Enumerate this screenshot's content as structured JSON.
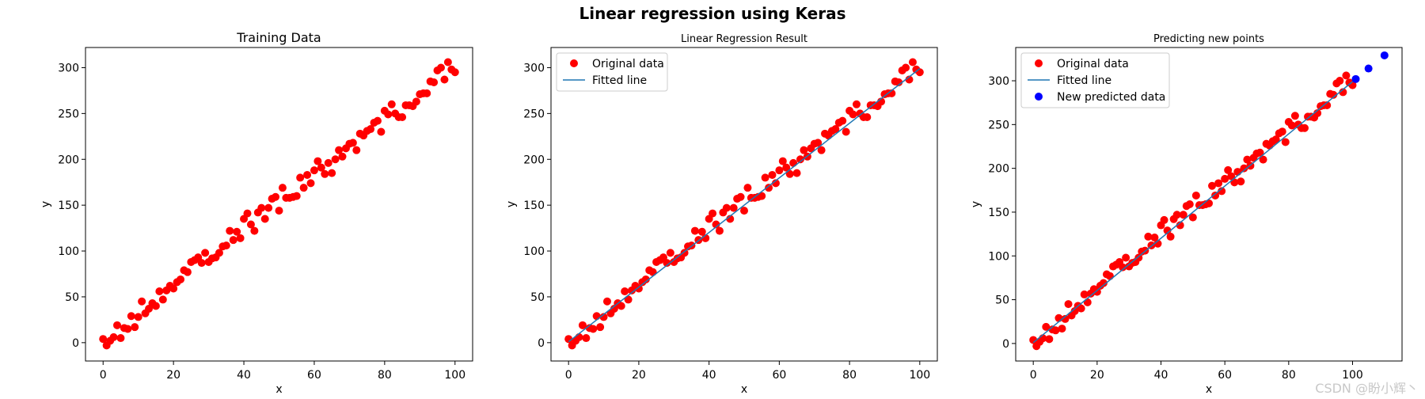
{
  "figure": {
    "suptitle": "Linear regression using Keras",
    "watermark": "CSDN @盼小辉丶"
  },
  "colors": {
    "original": "#ff0000",
    "fitted": "#1f77b4",
    "predicted": "#0000ff",
    "axes": "#000000"
  },
  "chart_data": [
    {
      "type": "scatter",
      "title": "Training Data",
      "xlabel": "x",
      "ylabel": "y",
      "xlim": [
        -5,
        105
      ],
      "ylim": [
        -20,
        322
      ],
      "xticks": [
        0,
        20,
        40,
        60,
        80,
        100
      ],
      "yticks": [
        0,
        50,
        100,
        150,
        200,
        250,
        300
      ],
      "grid": false,
      "legend": null,
      "series": [
        {
          "kind": "scatter",
          "color": "#ff0000",
          "x": [
            0,
            1,
            2,
            3,
            4,
            5,
            6,
            7,
            8,
            9,
            10,
            11,
            12,
            13,
            14,
            15,
            16,
            17,
            18,
            19,
            20,
            21,
            22,
            23,
            24,
            25,
            26,
            27,
            28,
            29,
            30,
            31,
            32,
            33,
            34,
            35,
            36,
            37,
            38,
            39,
            40,
            41,
            42,
            43,
            44,
            45,
            46,
            47,
            48,
            49,
            50,
            51,
            52,
            53,
            54,
            55,
            56,
            57,
            58,
            59,
            60,
            61,
            62,
            63,
            64,
            65,
            66,
            67,
            68,
            69,
            70,
            71,
            72,
            73,
            74,
            75,
            76,
            77,
            78,
            79,
            80,
            81,
            82,
            83,
            84,
            85,
            86,
            87,
            88,
            89,
            90,
            91,
            92,
            93,
            94,
            95,
            96,
            97,
            98,
            99,
            100
          ],
          "y": [
            4,
            -3,
            2,
            6,
            19,
            5,
            16,
            15,
            29,
            17,
            28,
            45,
            32,
            37,
            43,
            40,
            56,
            47,
            57,
            62,
            59,
            66,
            69,
            79,
            77,
            88,
            90,
            93,
            87,
            98,
            88,
            92,
            93,
            98,
            105,
            106,
            122,
            112,
            121,
            114,
            135,
            141,
            129,
            122,
            142,
            147,
            135,
            147,
            157,
            159,
            144,
            169,
            158,
            158,
            159,
            160,
            180,
            169,
            183,
            174,
            188,
            198,
            191,
            184,
            196,
            185,
            200,
            210,
            203,
            212,
            217,
            218,
            210,
            228,
            226,
            231,
            233,
            240,
            242,
            230,
            253,
            249,
            260,
            250,
            246,
            246,
            259,
            259,
            258,
            263,
            271,
            272,
            272,
            285,
            284,
            297,
            300,
            287,
            306,
            298,
            295
          ]
        }
      ]
    },
    {
      "type": "scatter",
      "title": "Linear Regression Result",
      "xlabel": "x",
      "ylabel": "y",
      "xlim": [
        -5,
        105
      ],
      "ylim": [
        -20,
        322
      ],
      "xticks": [
        0,
        20,
        40,
        60,
        80,
        100
      ],
      "yticks": [
        0,
        50,
        100,
        150,
        200,
        250,
        300
      ],
      "grid": false,
      "legend": "top-left",
      "series": [
        {
          "kind": "scatter",
          "name": "Original data",
          "color": "#ff0000",
          "x": [
            0,
            1,
            2,
            3,
            4,
            5,
            6,
            7,
            8,
            9,
            10,
            11,
            12,
            13,
            14,
            15,
            16,
            17,
            18,
            19,
            20,
            21,
            22,
            23,
            24,
            25,
            26,
            27,
            28,
            29,
            30,
            31,
            32,
            33,
            34,
            35,
            36,
            37,
            38,
            39,
            40,
            41,
            42,
            43,
            44,
            45,
            46,
            47,
            48,
            49,
            50,
            51,
            52,
            53,
            54,
            55,
            56,
            57,
            58,
            59,
            60,
            61,
            62,
            63,
            64,
            65,
            66,
            67,
            68,
            69,
            70,
            71,
            72,
            73,
            74,
            75,
            76,
            77,
            78,
            79,
            80,
            81,
            82,
            83,
            84,
            85,
            86,
            87,
            88,
            89,
            90,
            91,
            92,
            93,
            94,
            95,
            96,
            97,
            98,
            99,
            100
          ],
          "y": [
            4,
            -3,
            2,
            6,
            19,
            5,
            16,
            15,
            29,
            17,
            28,
            45,
            32,
            37,
            43,
            40,
            56,
            47,
            57,
            62,
            59,
            66,
            69,
            79,
            77,
            88,
            90,
            93,
            87,
            98,
            88,
            92,
            93,
            98,
            105,
            106,
            122,
            112,
            121,
            114,
            135,
            141,
            129,
            122,
            142,
            147,
            135,
            147,
            157,
            159,
            144,
            169,
            158,
            158,
            159,
            160,
            180,
            169,
            183,
            174,
            188,
            198,
            191,
            184,
            196,
            185,
            200,
            210,
            203,
            212,
            217,
            218,
            210,
            228,
            226,
            231,
            233,
            240,
            242,
            230,
            253,
            249,
            260,
            250,
            246,
            246,
            259,
            259,
            258,
            263,
            271,
            272,
            272,
            285,
            284,
            297,
            300,
            287,
            306,
            298,
            295
          ]
        },
        {
          "kind": "line",
          "name": "Fitted line",
          "color": "#1f77b4",
          "x": [
            0,
            100
          ],
          "y": [
            1,
            299
          ]
        }
      ]
    },
    {
      "type": "scatter",
      "title": "Predicting new points",
      "xlabel": "x",
      "ylabel": "y",
      "xlim": [
        -5.5,
        115.5
      ],
      "ylim": [
        -20,
        338
      ],
      "xticks": [
        0,
        20,
        40,
        60,
        80,
        100
      ],
      "yticks": [
        0,
        50,
        100,
        150,
        200,
        250,
        300
      ],
      "grid": false,
      "legend": "top-left",
      "series": [
        {
          "kind": "scatter",
          "name": "Original data",
          "color": "#ff0000",
          "x": [
            0,
            1,
            2,
            3,
            4,
            5,
            6,
            7,
            8,
            9,
            10,
            11,
            12,
            13,
            14,
            15,
            16,
            17,
            18,
            19,
            20,
            21,
            22,
            23,
            24,
            25,
            26,
            27,
            28,
            29,
            30,
            31,
            32,
            33,
            34,
            35,
            36,
            37,
            38,
            39,
            40,
            41,
            42,
            43,
            44,
            45,
            46,
            47,
            48,
            49,
            50,
            51,
            52,
            53,
            54,
            55,
            56,
            57,
            58,
            59,
            60,
            61,
            62,
            63,
            64,
            65,
            66,
            67,
            68,
            69,
            70,
            71,
            72,
            73,
            74,
            75,
            76,
            77,
            78,
            79,
            80,
            81,
            82,
            83,
            84,
            85,
            86,
            87,
            88,
            89,
            90,
            91,
            92,
            93,
            94,
            95,
            96,
            97,
            98,
            99,
            100
          ],
          "y": [
            4,
            -3,
            2,
            6,
            19,
            5,
            16,
            15,
            29,
            17,
            28,
            45,
            32,
            37,
            43,
            40,
            56,
            47,
            57,
            62,
            59,
            66,
            69,
            79,
            77,
            88,
            90,
            93,
            87,
            98,
            88,
            92,
            93,
            98,
            105,
            106,
            122,
            112,
            121,
            114,
            135,
            141,
            129,
            122,
            142,
            147,
            135,
            147,
            157,
            159,
            144,
            169,
            158,
            158,
            159,
            160,
            180,
            169,
            183,
            174,
            188,
            198,
            191,
            184,
            196,
            185,
            200,
            210,
            203,
            212,
            217,
            218,
            210,
            228,
            226,
            231,
            233,
            240,
            242,
            230,
            253,
            249,
            260,
            250,
            246,
            246,
            259,
            259,
            258,
            263,
            271,
            272,
            272,
            285,
            284,
            297,
            300,
            287,
            306,
            298,
            295
          ]
        },
        {
          "kind": "line",
          "name": "Fitted line",
          "color": "#1f77b4",
          "x": [
            0,
            100
          ],
          "y": [
            1,
            299
          ]
        },
        {
          "kind": "scatter",
          "name": "New predicted data",
          "color": "#0000ff",
          "x": [
            101,
            105,
            110
          ],
          "y": [
            302,
            314,
            329
          ]
        }
      ]
    }
  ]
}
